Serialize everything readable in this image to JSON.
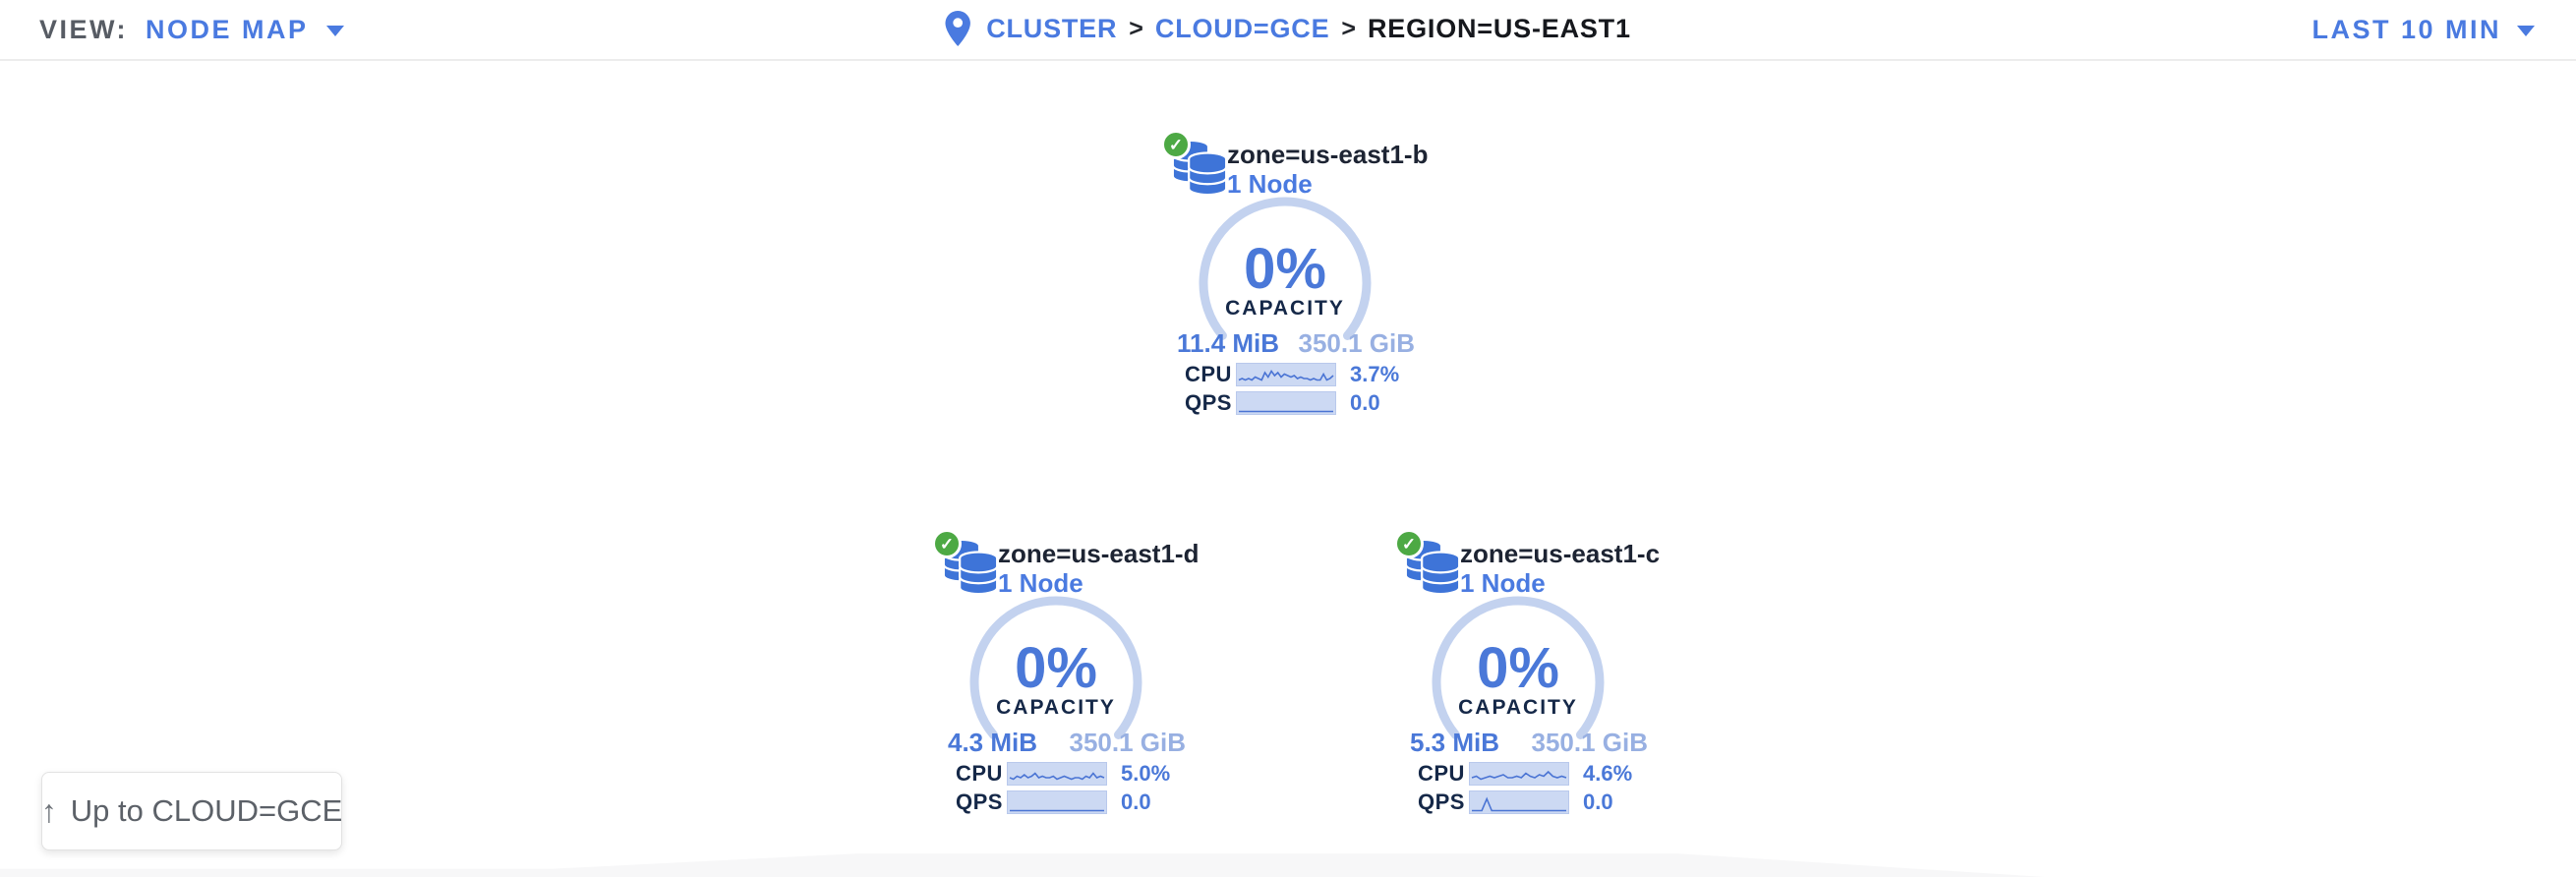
{
  "header": {
    "view_label": "VIEW:",
    "view_value": "NODE MAP",
    "breadcrumb": {
      "separator": ">",
      "items": [
        {
          "label": "CLUSTER"
        },
        {
          "label": "CLOUD=GCE"
        },
        {
          "label": "REGION=US-EAST1"
        }
      ]
    },
    "time_range": "LAST 10 MIN"
  },
  "zones": [
    {
      "title": "zone=us-east1-b",
      "subtitle": "1 Node",
      "status": "healthy",
      "capacity_pct": "0%",
      "capacity_label": "CAPACITY",
      "used": "11.4 MiB",
      "total": "350.1 GiB",
      "cpu_label": "CPU",
      "cpu_value": "3.7%",
      "qps_label": "QPS",
      "qps_value": "0.0",
      "cpu_spark": [
        2,
        3,
        2,
        3,
        2,
        4,
        3,
        2,
        7,
        4,
        8,
        5,
        7,
        4,
        6,
        5,
        4,
        5,
        3,
        4,
        3,
        3,
        2,
        3,
        2,
        2,
        6,
        2,
        3,
        5
      ],
      "qps_spark": [
        0,
        0,
        0,
        0,
        0,
        0,
        0,
        0,
        0,
        0,
        0,
        0,
        0,
        0,
        0,
        0,
        0,
        0,
        0,
        0,
        0,
        0,
        0,
        0
      ]
    },
    {
      "title": "zone=us-east1-d",
      "subtitle": "1 Node",
      "status": "healthy",
      "capacity_pct": "0%",
      "capacity_label": "CAPACITY",
      "used": "4.3 MiB",
      "total": "350.1 GiB",
      "cpu_label": "CPU",
      "cpu_value": "5.0%",
      "qps_label": "QPS",
      "qps_value": "0.0",
      "cpu_spark": [
        3,
        2,
        4,
        3,
        5,
        3,
        4,
        6,
        3,
        4,
        3,
        3,
        4,
        2,
        3,
        4,
        3,
        2,
        3,
        3,
        2,
        4,
        3,
        6,
        3,
        4,
        3
      ],
      "qps_spark": [
        0,
        0,
        0,
        0,
        0,
        0,
        0,
        0,
        0,
        0,
        0,
        0,
        0,
        0,
        0,
        0,
        0,
        0,
        0,
        0,
        0,
        0,
        0,
        0
      ]
    },
    {
      "title": "zone=us-east1-c",
      "subtitle": "1 Node",
      "status": "healthy",
      "capacity_pct": "0%",
      "capacity_label": "CAPACITY",
      "used": "5.3 MiB",
      "total": "350.1 GiB",
      "cpu_label": "CPU",
      "cpu_value": "4.6%",
      "qps_label": "QPS",
      "qps_value": "0.0",
      "cpu_spark": [
        3,
        4,
        2,
        3,
        4,
        3,
        4,
        5,
        3,
        3,
        4,
        3,
        6,
        4,
        3,
        5,
        4,
        7,
        4,
        3,
        4,
        3
      ],
      "qps_spark": [
        0,
        0,
        0,
        8,
        0,
        0,
        0,
        0,
        0,
        0,
        0,
        0,
        0,
        0,
        0,
        0,
        0,
        0,
        0,
        0
      ]
    }
  ],
  "up_button": {
    "label": "Up to CLOUD=GCE"
  },
  "colors": {
    "accent_blue": "#4a7ae0",
    "value_blue": "#4a78d8",
    "light_blue": "#98b0e2",
    "ring_blue": "#c3d2ef",
    "spark_fill": "#ccd9f3",
    "spark_line": "#4a74d4",
    "dark_navy": "#152848",
    "healthy_green": "#4DA944"
  }
}
